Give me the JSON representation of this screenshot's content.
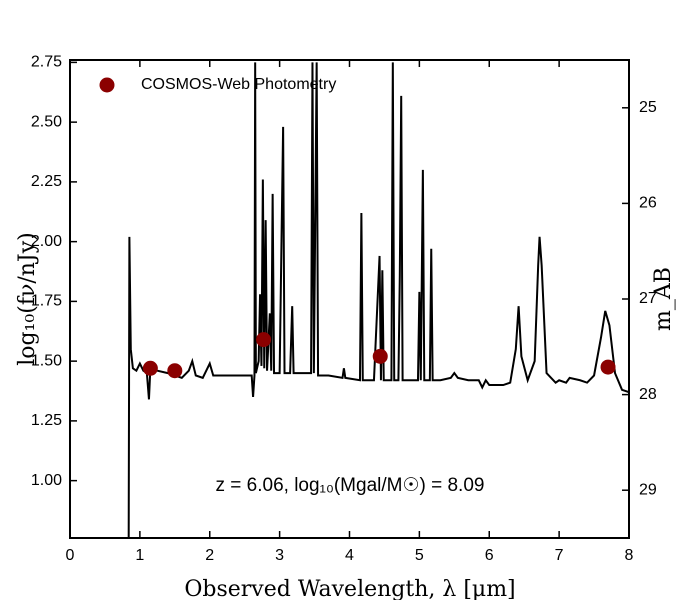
{
  "chart_data": {
    "type": "line",
    "xlabel": "Observed Wavelength, λ [μm]",
    "ylabel": "log₁₀(fν/nJy)",
    "y2label": "m_AB",
    "annotation": "z = 6.06, log₁₀(Mgal/M☉) = 8.09",
    "legend": "upper left",
    "xlim": [
      0,
      8
    ],
    "xticks": [
      0,
      1,
      2,
      3,
      4,
      5,
      6,
      7,
      8
    ],
    "ylim": [
      0.76,
      2.76
    ],
    "yticks": [
      {
        "value": 1,
        "label": "1.00"
      },
      1.25,
      {
        "value": 1.5,
        "label": "1.50"
      },
      1.75,
      {
        "value": 2,
        "label": "2.00"
      },
      2.25,
      {
        "value": 2.5,
        "label": "2.50"
      },
      2.75
    ],
    "y2lim": [
      29.5,
      24.5
    ],
    "y2ticks": [
      25,
      26,
      27,
      28,
      29
    ],
    "series": [
      {
        "type": "line",
        "color": "#000000",
        "x": [
          0.84,
          0.85,
          0.87,
          0.9,
          0.95,
          1.0,
          1.05,
          1.1,
          1.13,
          1.15,
          1.25,
          1.4,
          1.5,
          1.6,
          1.7,
          1.75,
          1.8,
          1.9,
          1.95,
          2.0,
          2.05,
          2.2,
          2.4,
          2.6,
          2.62,
          2.64,
          2.65,
          2.66,
          2.7,
          2.72,
          2.74,
          2.76,
          2.78,
          2.8,
          2.82,
          2.86,
          2.88,
          2.9,
          2.92,
          3.0,
          3.05,
          3.07,
          3.15,
          3.18,
          3.2,
          3.3,
          3.45,
          3.47,
          3.49,
          3.53,
          3.55,
          3.7,
          3.9,
          3.92,
          3.94,
          4.15,
          4.17,
          4.19,
          4.35,
          4.43,
          4.45,
          4.47,
          4.49,
          4.6,
          4.62,
          4.64,
          4.7,
          4.72,
          4.74,
          4.76,
          4.85,
          4.98,
          5.0,
          5.02,
          5.05,
          5.07,
          5.15,
          5.17,
          5.19,
          5.3,
          5.45,
          5.5,
          5.55,
          5.7,
          5.85,
          5.9,
          5.95,
          6.0,
          6.1,
          6.2,
          6.3,
          6.38,
          6.42,
          6.46,
          6.55,
          6.65,
          6.7,
          6.72,
          6.75,
          6.82,
          6.95,
          7.0,
          7.1,
          7.15,
          7.3,
          7.4,
          7.5,
          7.6,
          7.66,
          7.72,
          7.8,
          7.9,
          8.0
        ],
        "y": [
          0.76,
          2.02,
          1.55,
          1.47,
          1.46,
          1.49,
          1.46,
          1.45,
          1.34,
          1.47,
          1.46,
          1.45,
          1.44,
          1.43,
          1.46,
          1.5,
          1.44,
          1.43,
          1.46,
          1.49,
          1.44,
          1.44,
          1.44,
          1.44,
          1.35,
          1.44,
          2.75,
          1.45,
          1.5,
          1.78,
          1.48,
          2.26,
          1.47,
          2.09,
          1.46,
          1.7,
          1.46,
          2.2,
          1.45,
          1.45,
          2.48,
          1.45,
          1.45,
          1.73,
          1.45,
          1.45,
          1.45,
          2.75,
          1.45,
          2.75,
          1.44,
          1.44,
          1.43,
          1.47,
          1.43,
          1.42,
          2.12,
          1.42,
          1.42,
          1.94,
          1.42,
          1.88,
          1.42,
          1.42,
          2.75,
          1.42,
          1.42,
          1.86,
          2.61,
          1.42,
          1.42,
          1.42,
          1.79,
          1.42,
          2.3,
          1.42,
          1.42,
          1.97,
          1.42,
          1.42,
          1.43,
          1.45,
          1.43,
          1.42,
          1.42,
          1.39,
          1.42,
          1.4,
          1.4,
          1.4,
          1.41,
          1.55,
          1.73,
          1.52,
          1.42,
          1.5,
          1.9,
          2.02,
          1.9,
          1.45,
          1.41,
          1.42,
          1.41,
          1.43,
          1.42,
          1.41,
          1.44,
          1.6,
          1.71,
          1.65,
          1.45,
          1.38,
          1.37
        ]
      },
      {
        "type": "scatter",
        "name": "COSMOS-Web Photometry",
        "color": "#8b0000",
        "x": [
          1.15,
          1.5,
          2.77,
          4.44,
          7.7
        ],
        "y": [
          1.47,
          1.46,
          1.59,
          1.52,
          1.475
        ]
      }
    ]
  }
}
